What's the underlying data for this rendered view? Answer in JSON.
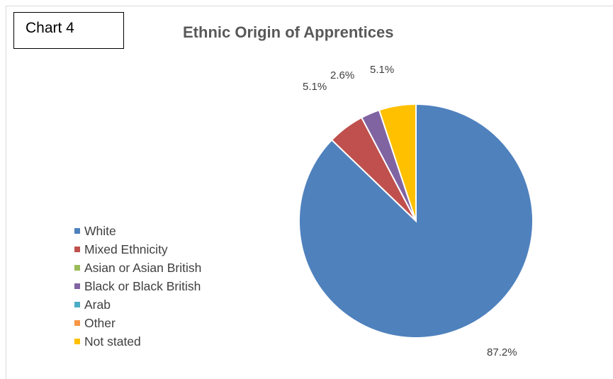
{
  "label_box": "Chart 4",
  "chart_data": {
    "type": "pie",
    "title": "Ethnic Origin of Apprentices",
    "legend_position": "left",
    "slices": [
      {
        "name": "White",
        "value": 87.2,
        "label": "87.2%",
        "color": "#4f81bd"
      },
      {
        "name": "Mixed Ethnicity",
        "value": 5.1,
        "label": "5.1%",
        "color": "#c0504d"
      },
      {
        "name": "Asian or Asian British",
        "value": 0,
        "label": "",
        "color": "#9bbb59"
      },
      {
        "name": "Black or Black British",
        "value": 2.6,
        "label": "2.6%",
        "color": "#8064a2"
      },
      {
        "name": "Arab",
        "value": 0,
        "label": "",
        "color": "#4bacc6"
      },
      {
        "name": "Other",
        "value": 0,
        "label": "",
        "color": "#f79646"
      },
      {
        "name": "Not stated",
        "value": 5.1,
        "label": "5.1%",
        "color": "#ffc000"
      }
    ]
  }
}
